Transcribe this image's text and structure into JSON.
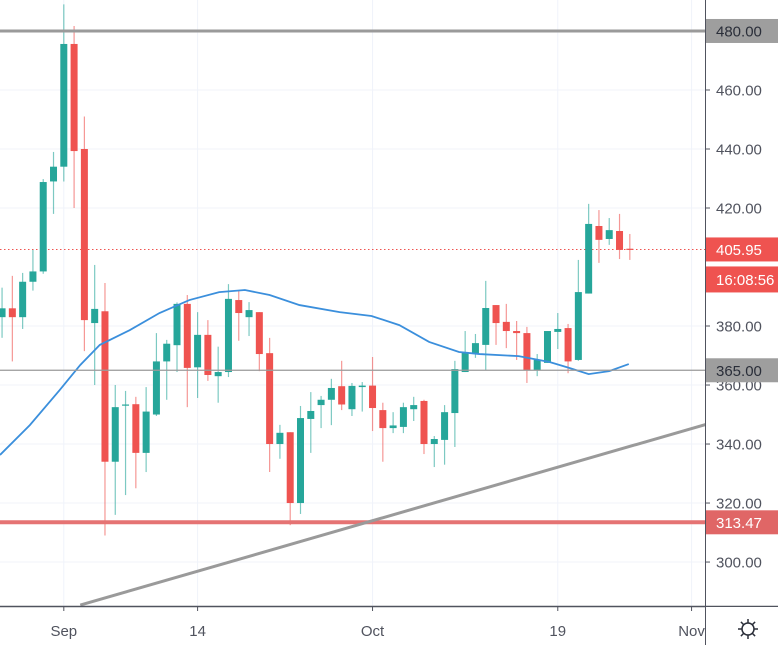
{
  "chart_data": {
    "type": "candlestick",
    "title": "",
    "x_unit": "day index (0 = Aug 26)",
    "colors": {
      "up": "#26a69a",
      "down": "#ef5350",
      "ma": "#3b8fdc",
      "grid": "#f0f3fa",
      "hline_gray": "#9a9a9a",
      "hline_red": "#e57373",
      "trend": "#9a9a9a",
      "axis_text": "#50535e"
    },
    "ylim": [
      285.1,
      490.5
    ],
    "xlim": [
      -0.2,
      68.5
    ],
    "y_ticks": [
      460,
      440,
      420,
      380,
      360,
      340,
      320,
      300
    ],
    "y_tick_labels": [
      "460.00",
      "440.00",
      "420.00",
      "380.00",
      "360.00",
      "340.00",
      "320.00",
      "300.00"
    ],
    "x_ticks": [
      {
        "day": 6,
        "label": "Sep"
      },
      {
        "day": 19,
        "label": "14"
      },
      {
        "day": 36,
        "label": "Oct"
      },
      {
        "day": 54,
        "label": "19"
      },
      {
        "day": 67,
        "label": "Nov"
      }
    ],
    "candles_ohlc": [
      [
        383,
        393,
        376,
        386
      ],
      [
        386,
        397,
        368,
        383
      ],
      [
        383,
        398,
        379,
        395
      ],
      [
        395,
        405.8,
        392,
        398.5
      ],
      [
        398.5,
        429.8,
        397.7,
        428.8
      ],
      [
        429,
        439,
        418,
        434
      ],
      [
        434,
        489,
        429,
        475.6
      ],
      [
        475.6,
        481.7,
        420,
        439.3
      ],
      [
        440,
        451,
        371.5,
        382
      ],
      [
        381,
        400.7,
        360,
        385.8
      ],
      [
        385,
        394.6,
        309,
        334
      ],
      [
        334,
        360,
        316,
        352.5
      ],
      [
        353.2,
        358,
        322.7,
        353.4
      ],
      [
        353.5,
        356,
        325,
        337
      ],
      [
        337,
        359.3,
        330.5,
        351
      ],
      [
        350,
        377.6,
        349.5,
        368
      ],
      [
        368,
        375.3,
        355,
        374
      ],
      [
        373.5,
        388,
        364.4,
        387.5
      ],
      [
        387.5,
        390.5,
        352.5,
        365.8
      ],
      [
        366,
        384.7,
        355.6,
        377
      ],
      [
        377,
        382,
        361.4,
        363.4
      ],
      [
        363,
        373,
        354,
        364.4
      ],
      [
        364.4,
        394.2,
        362.7,
        389.2
      ],
      [
        388.8,
        392.2,
        375,
        384.4
      ],
      [
        383,
        388.1,
        376.6,
        385.4
      ],
      [
        384.7,
        384.7,
        364.7,
        370.5
      ],
      [
        370.8,
        376,
        330.5,
        340
      ],
      [
        340,
        346.5,
        335,
        343.8
      ],
      [
        344,
        344,
        312.5,
        320
      ],
      [
        320,
        352.9,
        316.3,
        348.8
      ],
      [
        348.5,
        357.6,
        337,
        351.2
      ],
      [
        353.2,
        356.3,
        345.4,
        355
      ],
      [
        355,
        362.1,
        346.4,
        359
      ],
      [
        359.6,
        368.2,
        351.5,
        353.4
      ],
      [
        351.8,
        360.7,
        349.5,
        359.7
      ],
      [
        359.3,
        361,
        351,
        359.8
      ],
      [
        359.8,
        369.5,
        344.4,
        352.2
      ],
      [
        351.5,
        354,
        334,
        345.4
      ],
      [
        345.4,
        350.8,
        343.7,
        346.3
      ],
      [
        345.8,
        354,
        343.7,
        352.5
      ],
      [
        351.8,
        356,
        347.8,
        353.2
      ],
      [
        354.6,
        355,
        336.6,
        340
      ],
      [
        340,
        342.7,
        332.2,
        341.7
      ],
      [
        341.4,
        353.2,
        333,
        350.8
      ],
      [
        350.5,
        368.2,
        339,
        365.4
      ],
      [
        364.4,
        378.3,
        364.4,
        371.2
      ],
      [
        370.5,
        377.3,
        369.2,
        374.2
      ],
      [
        373.6,
        395.3,
        365.1,
        386.1
      ],
      [
        387.1,
        387.1,
        373.6,
        381
      ],
      [
        381.4,
        387.5,
        372.5,
        378.3
      ],
      [
        378.3,
        381.7,
        368.5,
        377.6
      ],
      [
        377.6,
        379.7,
        360.7,
        365
      ],
      [
        365,
        370.5,
        363,
        368.5
      ],
      [
        367.5,
        378.3,
        367.5,
        378.3
      ],
      [
        378,
        384.4,
        372.2,
        379
      ],
      [
        379.3,
        380.7,
        364,
        368
      ],
      [
        368.5,
        402.4,
        368.2,
        391.5
      ],
      [
        391,
        421.4,
        391,
        414.6
      ],
      [
        413.9,
        419.3,
        401.4,
        409.2
      ],
      [
        409.5,
        416.6,
        407.5,
        412.5
      ],
      [
        412.2,
        418,
        402.7,
        405.8
      ],
      [
        406.2,
        411.2,
        402.4,
        405.95
      ]
    ],
    "moving_average": [
      [
        -0.2,
        336.3
      ],
      [
        2.7,
        346.4
      ],
      [
        5.6,
        358.3
      ],
      [
        7.6,
        366.8
      ],
      [
        9.5,
        373.6
      ],
      [
        12.4,
        378.6
      ],
      [
        15.3,
        384.4
      ],
      [
        18.2,
        388.8
      ],
      [
        21.1,
        391.5
      ],
      [
        23.6,
        392.2
      ],
      [
        26,
        390.5
      ],
      [
        28.9,
        387.1
      ],
      [
        32.8,
        384.7
      ],
      [
        35.9,
        383.4
      ],
      [
        38.6,
        380.3
      ],
      [
        41.5,
        374.6
      ],
      [
        44.4,
        371.2
      ],
      [
        46.4,
        370.5
      ],
      [
        50.2,
        369.8
      ],
      [
        53.2,
        367.8
      ],
      [
        55.1,
        365.8
      ],
      [
        57,
        363.7
      ],
      [
        59,
        364.7
      ],
      [
        60.9,
        367.1
      ]
    ],
    "horizontal_lines": [
      {
        "price": 480,
        "label": "480.00",
        "style": "gray-thick"
      },
      {
        "price": 365,
        "label": "365.00",
        "style": "gray-thin"
      },
      {
        "price": 313.47,
        "label": "313.47",
        "style": "red-thick"
      }
    ],
    "trendline": [
      [
        7.6,
        285.4
      ],
      [
        75.3,
        353.6
      ]
    ],
    "last_price": {
      "value": 405.95,
      "label": "405.95",
      "countdown": "16:08:56"
    }
  },
  "icons": {
    "settings": "gear-icon"
  }
}
